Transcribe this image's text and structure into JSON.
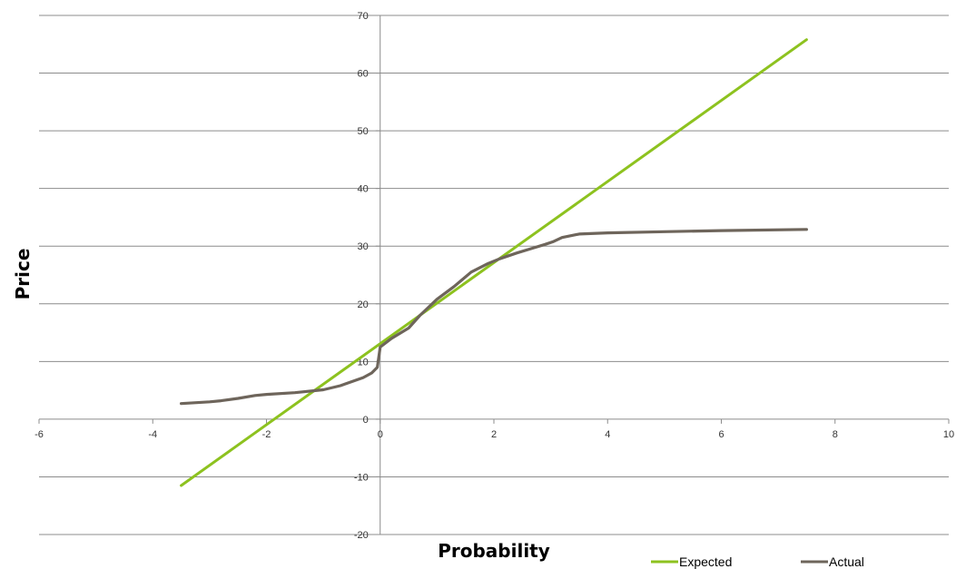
{
  "chart_data": {
    "type": "line",
    "title": "",
    "xlabel": "Probability",
    "ylabel": "Price",
    "xlim": [
      -6,
      10
    ],
    "ylim": [
      -20,
      70
    ],
    "x_ticks": [
      -6,
      -4,
      -2,
      0,
      2,
      4,
      6,
      8,
      10
    ],
    "y_ticks": [
      -20,
      -10,
      0,
      10,
      20,
      30,
      40,
      50,
      60,
      70
    ],
    "grid": "horizontal",
    "legend": "bottom-right",
    "series": [
      {
        "name": "Expected",
        "color": "#8dc21f",
        "points": [
          [
            -3.5,
            -11.5
          ],
          [
            7.5,
            65.8
          ]
        ]
      },
      {
        "name": "Actual",
        "color": "#6e655b",
        "points": [
          [
            -3.5,
            2.7
          ],
          [
            -3.0,
            3.0
          ],
          [
            -2.8,
            3.2
          ],
          [
            -2.5,
            3.6
          ],
          [
            -2.2,
            4.1
          ],
          [
            -2.0,
            4.3
          ],
          [
            -1.5,
            4.6
          ],
          [
            -1.0,
            5.1
          ],
          [
            -0.7,
            5.8
          ],
          [
            -0.3,
            7.2
          ],
          [
            -0.15,
            8.0
          ],
          [
            -0.05,
            9.0
          ],
          [
            0.0,
            12.5
          ],
          [
            0.2,
            14.0
          ],
          [
            0.5,
            15.8
          ],
          [
            0.7,
            18.0
          ],
          [
            1.0,
            20.8
          ],
          [
            1.3,
            23.0
          ],
          [
            1.6,
            25.5
          ],
          [
            1.9,
            27.0
          ],
          [
            2.1,
            27.8
          ],
          [
            2.4,
            28.8
          ],
          [
            2.7,
            29.7
          ],
          [
            2.9,
            30.3
          ],
          [
            3.05,
            30.8
          ],
          [
            3.2,
            31.5
          ],
          [
            3.5,
            32.1
          ],
          [
            4.0,
            32.3
          ],
          [
            5.0,
            32.5
          ],
          [
            6.0,
            32.7
          ],
          [
            7.5,
            32.9
          ]
        ]
      }
    ]
  }
}
